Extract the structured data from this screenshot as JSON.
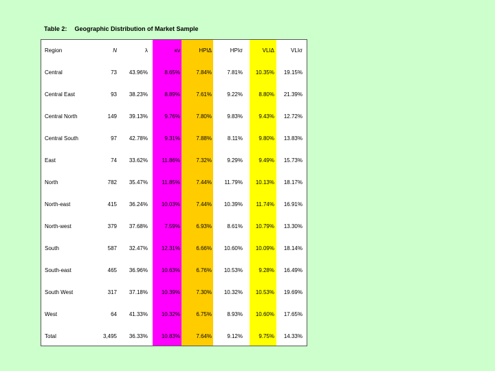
{
  "caption": {
    "number": "Table 2:",
    "title": "Geographic Distribution of Market Sample"
  },
  "colors": {
    "background": "#ccffcc",
    "magenta_band": "#ff00ff",
    "orange_band": "#ffcc00",
    "yellow_band": "#ffff00"
  },
  "header": {
    "region": "Region",
    "n": "N",
    "lambda": "λ",
    "kappa": "κν",
    "hpi_delta": "HPIΔ",
    "hpi_sigma": "HPIσ",
    "vli_delta": "VLIΔ",
    "vli_sigma": "VLIσ"
  },
  "rows": [
    {
      "region": "Central",
      "n": "73",
      "lambda": "43.96%",
      "kappa": "8.65%",
      "hpi_delta": "7.84%",
      "hpi_sigma": "7.81%",
      "vli_delta": "10.35%",
      "vli_sigma": "19.15%"
    },
    {
      "region": "Central East",
      "n": "93",
      "lambda": "38.23%",
      "kappa": "8.89%",
      "hpi_delta": "7.61%",
      "hpi_sigma": "9.22%",
      "vli_delta": "8.80%",
      "vli_sigma": "21.39%"
    },
    {
      "region": "Central North",
      "n": "149",
      "lambda": "39.13%",
      "kappa": "9.76%",
      "hpi_delta": "7.80%",
      "hpi_sigma": "9.83%",
      "vli_delta": "9.43%",
      "vli_sigma": "12.72%"
    },
    {
      "region": "Central South",
      "n": "97",
      "lambda": "42.78%",
      "kappa": "9.31%",
      "hpi_delta": "7.88%",
      "hpi_sigma": "8.11%",
      "vli_delta": "9.80%",
      "vli_sigma": "13.83%"
    },
    {
      "region": "East",
      "n": "74",
      "lambda": "33.62%",
      "kappa": "11.86%",
      "hpi_delta": "7.32%",
      "hpi_sigma": "9.29%",
      "vli_delta": "9.49%",
      "vli_sigma": "15.73%"
    },
    {
      "region": "North",
      "n": "782",
      "lambda": "35.47%",
      "kappa": "11.85%",
      "hpi_delta": "7.44%",
      "hpi_sigma": "11.79%",
      "vli_delta": "10.13%",
      "vli_sigma": "18.17%"
    },
    {
      "region": "North-east",
      "n": "415",
      "lambda": "36.24%",
      "kappa": "10.03%",
      "hpi_delta": "7.44%",
      "hpi_sigma": "10.39%",
      "vli_delta": "11.74%",
      "vli_sigma": "16.91%"
    },
    {
      "region": "North-west",
      "n": "379",
      "lambda": "37.68%",
      "kappa": "7.59%",
      "hpi_delta": "6.93%",
      "hpi_sigma": "8.61%",
      "vli_delta": "10.79%",
      "vli_sigma": "13.30%"
    },
    {
      "region": "South",
      "n": "587",
      "lambda": "32.47%",
      "kappa": "12.31%",
      "hpi_delta": "6.66%",
      "hpi_sigma": "10.60%",
      "vli_delta": "10.09%",
      "vli_sigma": "18.14%"
    },
    {
      "region": "South-east",
      "n": "465",
      "lambda": "36.96%",
      "kappa": "10.63%",
      "hpi_delta": "6.76%",
      "hpi_sigma": "10.53%",
      "vli_delta": "9.28%",
      "vli_sigma": "16.49%"
    },
    {
      "region": "South West",
      "n": "317",
      "lambda": "37.18%",
      "kappa": "10.39%",
      "hpi_delta": "7.30%",
      "hpi_sigma": "10.32%",
      "vli_delta": "10.53%",
      "vli_sigma": "19.69%"
    },
    {
      "region": "West",
      "n": "64",
      "lambda": "41.33%",
      "kappa": "10.32%",
      "hpi_delta": "6.75%",
      "hpi_sigma": "8.93%",
      "vli_delta": "10.60%",
      "vli_sigma": "17.65%"
    },
    {
      "region": "Total",
      "n": "3,495",
      "lambda": "36.33%",
      "kappa": "10.83%",
      "hpi_delta": "7.64%",
      "hpi_sigma": "9.12%",
      "vli_delta": "9.75%",
      "vli_sigma": "14.33%"
    }
  ]
}
